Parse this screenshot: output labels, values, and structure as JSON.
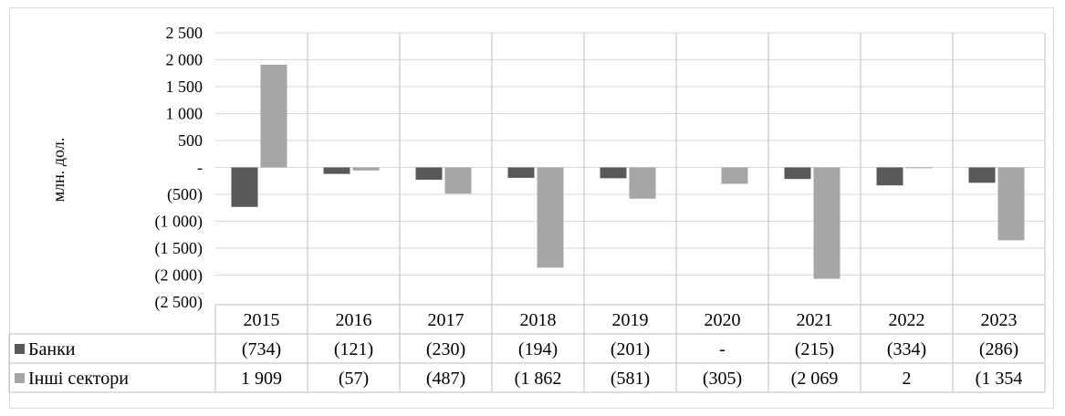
{
  "chart_data": {
    "type": "bar",
    "title": "",
    "xlabel": "",
    "ylabel": "млн. дол.",
    "ylim": [
      -2500,
      2500
    ],
    "y_ticks": [
      2500,
      2000,
      1500,
      1000,
      500,
      0,
      -500,
      -1000,
      -1500,
      -2000,
      -2500
    ],
    "y_tick_labels": [
      "2 500",
      "2 000",
      "1 500",
      "1 000",
      "500",
      "-",
      "(500)",
      "(1 000)",
      "(1 500)",
      "(2 000)",
      "(2 500)"
    ],
    "grid": true,
    "legend": "data-table",
    "categories": [
      "2015",
      "2016",
      "2017",
      "2018",
      "2019",
      "2020",
      "2021",
      "2022",
      "2023"
    ],
    "series": [
      {
        "name": "Банки",
        "color": "#595959",
        "values": [
          -734,
          -121,
          -230,
          -194,
          -201,
          0,
          -215,
          -334,
          -286
        ],
        "labels": [
          "(734)",
          "(121)",
          "(230)",
          "(194)",
          "(201)",
          "-",
          "(215)",
          "(334)",
          "(286)"
        ]
      },
      {
        "name": "Інші сектори",
        "color": "#a6a6a6",
        "values": [
          1909,
          -57,
          -487,
          -1862,
          -581,
          -305,
          -2069,
          2,
          -1354
        ],
        "labels": [
          "1 909",
          "(57)",
          "(487)",
          "(1 862",
          "(581)",
          "(305)",
          "(2 069",
          "2",
          "(1 354"
        ]
      }
    ]
  }
}
